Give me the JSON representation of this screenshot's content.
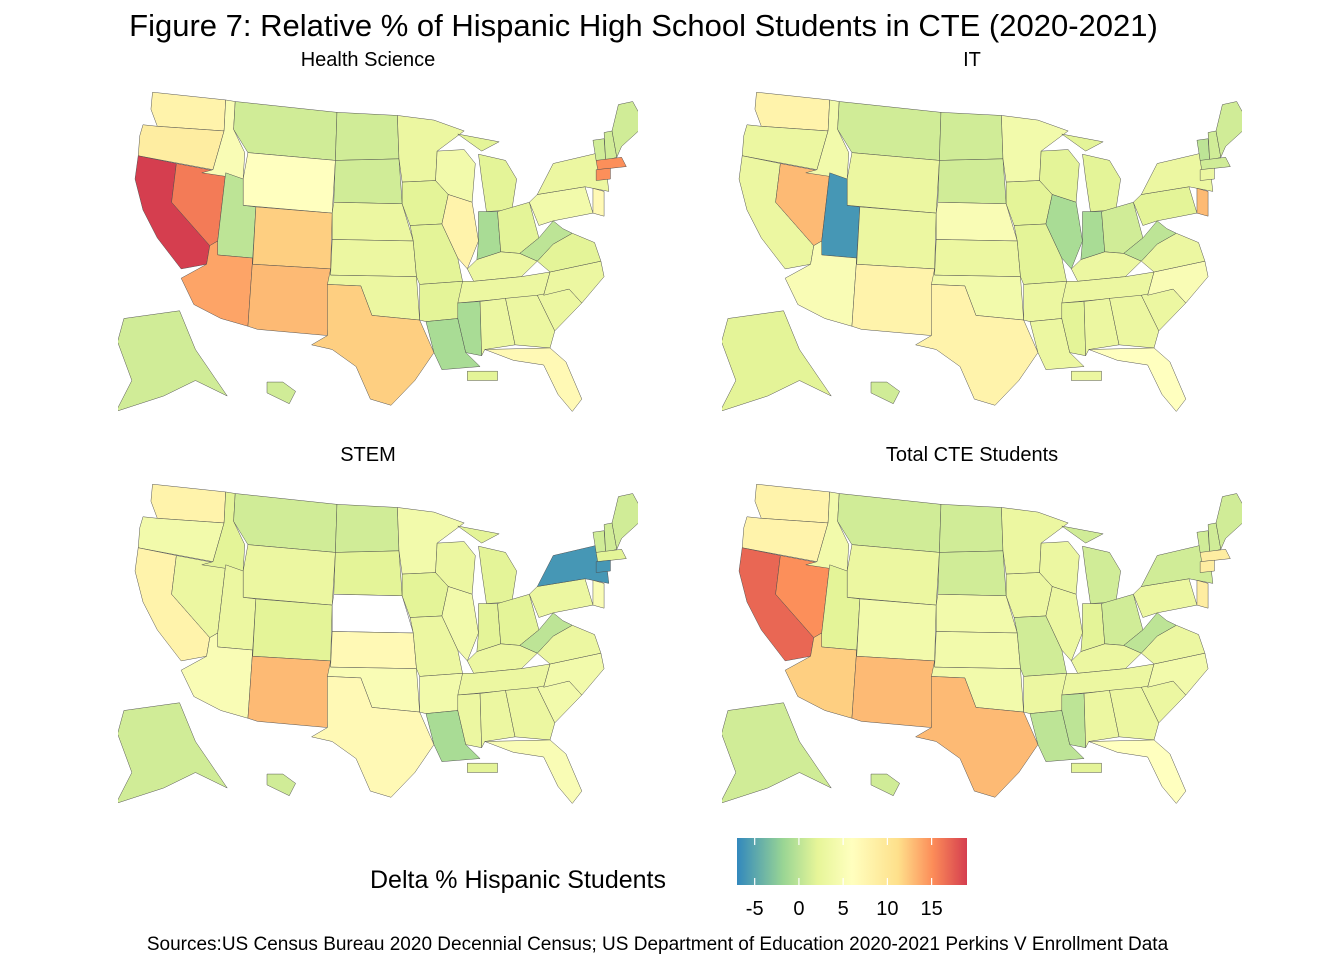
{
  "title": "Figure 7: Relative % of Hispanic High School Students in CTE (2020-2021)",
  "panels": [
    {
      "title": "Health  Science"
    },
    {
      "title": "IT"
    },
    {
      "title": "STEM"
    },
    {
      "title": "Total  CTE  Students"
    }
  ],
  "legend": {
    "title": "Delta % Hispanic Students",
    "ticks": [
      "-5",
      "0",
      "5",
      "10",
      "15"
    ],
    "range": [
      -7,
      19
    ],
    "palette": "Spectral"
  },
  "source": "Sources:US Census Bureau 2020 Decennial Census; US Department of Education 2020-2021 Perkins V Enrollment Data",
  "map_values": {
    "health_science": {
      "CA": 19,
      "NV": 16,
      "AZ": 14,
      "NM": 13,
      "TX": 12,
      "CO": 12,
      "OR": 9,
      "WA": 8,
      "WY": 6,
      "ID": 5,
      "UT": 0,
      "MT": 1,
      "ND": 1,
      "SD": 1,
      "NE": 3,
      "KS": 3,
      "OK": 3,
      "MN": 3,
      "IA": 2,
      "MO": 2,
      "AR": 2,
      "LA": -1,
      "MS": -1,
      "AL": 3,
      "GA": 3,
      "FL": 7,
      "SC": 3,
      "NC": 3,
      "TN": 3,
      "KY": 3,
      "WI": 4,
      "IL": 8,
      "IN": -1,
      "MI": 2,
      "OH": 2,
      "WV": 0,
      "VA": 2,
      "PA": 4,
      "NY": 3,
      "ME": 1,
      "VT": 1,
      "NH": 1,
      "MA": 15,
      "CT": 15,
      "NJ": 7,
      "AK": 1,
      "HI": 1,
      "PR": 2
    },
    "it": {
      "CA": 3,
      "NV": 13,
      "UT": -6,
      "AZ": 5,
      "NM": 8,
      "TX": 8,
      "CO": 3,
      "OR": 3,
      "WA": 8,
      "WY": 3,
      "ID": 4,
      "MT": 1,
      "ND": 1,
      "SD": 1,
      "NE": 5,
      "KS": 3,
      "OK": 4,
      "MN": 4,
      "IA": 2,
      "MO": 2,
      "AR": 3,
      "LA": 3,
      "MS": 2,
      "AL": 3,
      "GA": 3,
      "FL": 6,
      "SC": 3,
      "NC": 5,
      "TN": 3,
      "KY": 3,
      "WI": 2,
      "IL": -1,
      "IN": -1,
      "MI": 2,
      "OH": 1,
      "WV": 0,
      "VA": 3,
      "PA": 2,
      "NY": 3,
      "ME": 1,
      "VT": 0,
      "NH": 1,
      "MA": 1,
      "CT": 3,
      "NJ": 13,
      "AK": 2,
      "HI": 1,
      "PR": 3
    },
    "stem": {
      "CA": 8,
      "NV": 3,
      "AZ": 5,
      "NM": 13,
      "TX": 7,
      "CO": 2,
      "OR": 4,
      "WA": 8,
      "WY": 3,
      "ID": 2,
      "UT": 3,
      "MT": 1,
      "ND": 1,
      "SD": 2,
      "NE": null,
      "KS": 7,
      "OK": 5,
      "MN": 4,
      "IA": 2,
      "MO": 3,
      "AR": 4,
      "LA": -1,
      "MS": 3,
      "AL": 3,
      "GA": 3,
      "FL": 5,
      "SC": 4,
      "NC": 4,
      "TN": 3,
      "KY": 3,
      "WI": 3,
      "IL": 4,
      "IN": 2,
      "MI": 2,
      "OH": 2,
      "WV": 0,
      "VA": 3,
      "PA": 3,
      "NY": -6,
      "ME": 1,
      "VT": 1,
      "NH": 1,
      "MA": 2,
      "CT": -6,
      "NJ": 5,
      "AK": 1,
      "HI": 1,
      "PR": 2
    },
    "total_cte": {
      "CA": 17,
      "NV": 15,
      "AZ": 12,
      "NM": 13,
      "TX": 13,
      "CO": 4,
      "OR": 8,
      "WA": 8,
      "WY": 3,
      "ID": 4,
      "UT": 2,
      "MT": 1,
      "ND": 1,
      "SD": 1,
      "NE": 4,
      "KS": 4,
      "OK": 4,
      "MN": 3,
      "IA": 3,
      "MO": 1,
      "AR": 3,
      "LA": 0,
      "MS": 0,
      "AL": 3,
      "GA": 3,
      "FL": 6,
      "SC": 3,
      "NC": 4,
      "TN": 3,
      "KY": 3,
      "WI": 3,
      "IL": 3,
      "IN": 2,
      "MI": 1,
      "OH": 1,
      "WV": 0,
      "VA": 3,
      "PA": 3,
      "NY": 1,
      "ME": 1,
      "VT": 1,
      "NH": 1,
      "MA": 9,
      "CT": 9,
      "NJ": 9,
      "AK": 1,
      "HI": 1,
      "PR": 2
    }
  }
}
